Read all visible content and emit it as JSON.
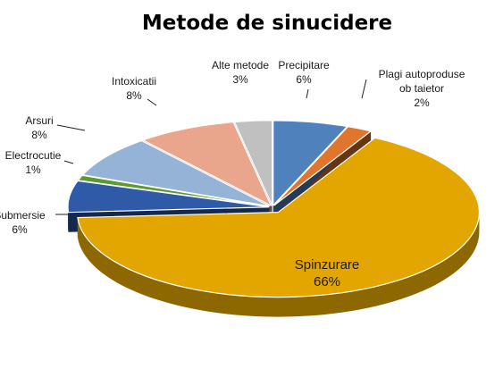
{
  "chart_data": {
    "type": "pie",
    "title": "Metode de sinucidere",
    "slices": [
      {
        "label": "Precipitare",
        "value": 6,
        "display": "6%",
        "color": "#4f81bd"
      },
      {
        "label": "Plagi autoproduse ob taietor",
        "display_lines": [
          "Plagi autoproduse",
          "ob taietor"
        ],
        "value": 2,
        "display": "2%",
        "color": "#e0762d"
      },
      {
        "label": "Spinzurare",
        "value": 66,
        "display": "66%",
        "color": "#e3a600"
      },
      {
        "label": "Submersie",
        "value": 6,
        "display": "6%",
        "color": "#2e5aa8"
      },
      {
        "label": "Electrocutie",
        "value": 1,
        "display": "1%",
        "color": "#5a9a2f"
      },
      {
        "label": "Arsuri",
        "value": 8,
        "display": "8%",
        "color": "#95b3d7"
      },
      {
        "label": "Intoxicatii",
        "value": 8,
        "display": "8%",
        "color": "#eaa68c"
      },
      {
        "label": "Alte metode",
        "value": 3,
        "display": "3%",
        "color": "#c0c0c0"
      }
    ]
  }
}
